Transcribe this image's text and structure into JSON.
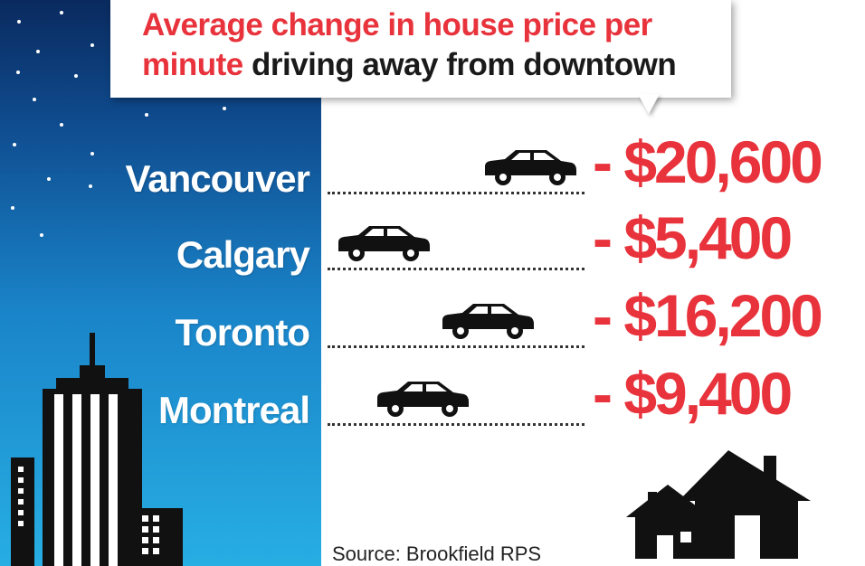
{
  "title": {
    "part1": "Average change in house price per",
    "part2": "minute",
    "part3": " driving away from downtown"
  },
  "chart_data": {
    "type": "bar",
    "categories": [
      "Vancouver",
      "Calgary",
      "Toronto",
      "Montreal"
    ],
    "values": [
      20600,
      5400,
      16200,
      9400
    ],
    "value_labels": [
      "- $20,600",
      "- $5,400",
      "- $16,200",
      "- $9,400"
    ],
    "max_value": 20600
  },
  "source": "Source: Brookfield RPS",
  "colors": {
    "accent": "#e8333c",
    "text_dark": "#1a1a1a",
    "sky_top": "#0a2a5e",
    "sky_bottom": "#27aee3",
    "silhouette": "#111111"
  },
  "icons": [
    "car-icon",
    "house-icon",
    "skyscraper-icon"
  ]
}
